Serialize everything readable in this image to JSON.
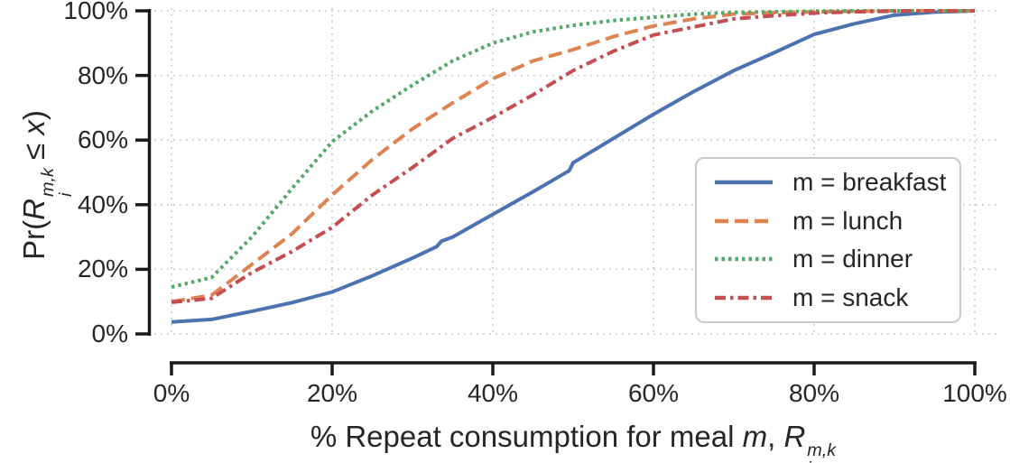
{
  "figure": {
    "background": "#ffffff",
    "text_color": "#262626",
    "spine_color": "#1a1a1a",
    "grid_color": "#cbcbcb",
    "legend_border_color": "#cacaca"
  },
  "axes": {
    "xlabel_parts": {
      "prefix": "% Repeat consumption for meal ",
      "m": "m",
      "sep": ", ",
      "R": "R",
      "sub": "i",
      "sup": "m,k"
    },
    "ylabel_parts": {
      "prefix": "Pr(",
      "R": "R",
      "sub": "i",
      "sup": "m,k",
      "mid": " ≤ ",
      "x": "x",
      "close": ")"
    },
    "xticks": {
      "values": [
        0,
        20,
        40,
        60,
        80,
        100
      ],
      "labels": [
        "0%",
        "20%",
        "40%",
        "60%",
        "80%",
        "100%"
      ]
    },
    "yticks": {
      "values": [
        0,
        20,
        40,
        60,
        80,
        100
      ],
      "labels": [
        "0%",
        "20%",
        "40%",
        "60%",
        "80%",
        "100%"
      ]
    }
  },
  "chart_data": {
    "type": "line",
    "title": "",
    "xlabel": "% Repeat consumption for meal m, R_i^{m,k}",
    "ylabel": "Pr(R_i^{m,k} <= x)",
    "xlim": [
      0,
      100
    ],
    "ylim": [
      0,
      100
    ],
    "grid": true,
    "grid_style": "dotted",
    "legend_position": "center right",
    "curve_kind": "empirical CDF",
    "series": [
      {
        "name": "m = breakfast",
        "color": "#4C72B0",
        "style": "solid",
        "x": [
          0,
          5,
          10,
          15,
          20,
          25,
          30,
          33,
          33.6,
          35,
          40,
          45,
          49.5,
          50,
          55,
          60,
          65,
          70,
          75,
          80,
          85,
          90,
          95,
          100
        ],
        "y": [
          3.7,
          4.5,
          7,
          9.7,
          13,
          18,
          23.5,
          27,
          28.7,
          30,
          37,
          44,
          50.5,
          53,
          60.5,
          68,
          75,
          81.5,
          87,
          92.7,
          96,
          98.7,
          99.6,
          100
        ]
      },
      {
        "name": "m = lunch",
        "color": "#DD8452",
        "style": "dashed",
        "x": [
          0,
          5,
          10,
          15,
          20,
          25,
          30,
          35,
          40,
          45,
          50,
          55,
          60,
          65,
          70,
          75,
          80,
          85,
          90,
          95,
          100
        ],
        "y": [
          10,
          12,
          21.5,
          31,
          43,
          54,
          63.5,
          71.5,
          79,
          84.5,
          88,
          92,
          95.3,
          97.5,
          99,
          99.4,
          99.7,
          99.9,
          100,
          100,
          100
        ]
      },
      {
        "name": "m = dinner",
        "color": "#55A868",
        "style": "dotted",
        "x": [
          0,
          5,
          10,
          15,
          20,
          25,
          30,
          35,
          40,
          45,
          50,
          55,
          60,
          65,
          70,
          75,
          80,
          85,
          90,
          95,
          100
        ],
        "y": [
          14.5,
          17.5,
          30,
          45,
          59.5,
          69,
          77,
          84.5,
          90,
          93.5,
          95.5,
          97,
          98,
          99,
          99.5,
          99.7,
          99.9,
          100,
          100,
          100,
          100
        ]
      },
      {
        "name": "m = snack",
        "color": "#C44E52",
        "style": "dashdot",
        "x": [
          0,
          5,
          10,
          15,
          20,
          25,
          30,
          35,
          40,
          45,
          50,
          55,
          60,
          65,
          70,
          75,
          80,
          85,
          90,
          95,
          100
        ],
        "y": [
          9.8,
          11,
          19,
          25.5,
          33,
          43,
          51.5,
          60.5,
          67,
          74,
          81.5,
          87.5,
          92.5,
          95,
          97.5,
          98.5,
          99.3,
          99.7,
          99.9,
          100,
          100
        ]
      }
    ]
  },
  "legend": {
    "items": [
      "m = breakfast",
      "m = lunch",
      "m = dinner",
      "m = snack"
    ]
  }
}
